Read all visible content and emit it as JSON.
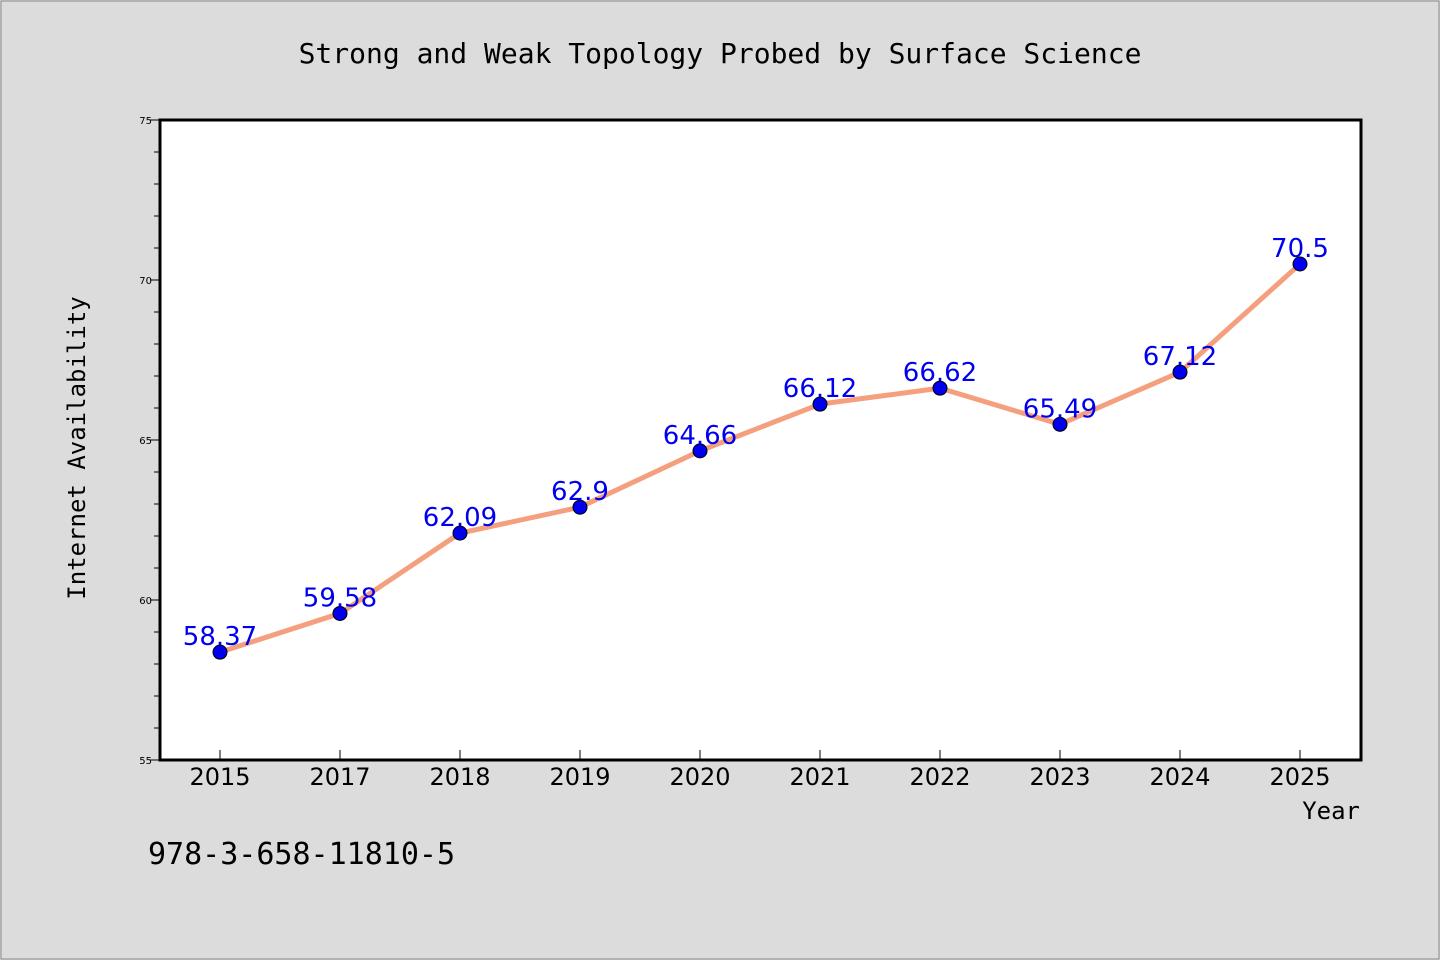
{
  "chart_data": {
    "type": "line",
    "title": "Strong and Weak Topology Probed by Surface Science",
    "xlabel": "Year",
    "ylabel": "Internet Availability",
    "categories": [
      "2015",
      "2017",
      "2018",
      "2019",
      "2020",
      "2021",
      "2022",
      "2023",
      "2024",
      "2025"
    ],
    "series": [
      {
        "values": [
          58.37,
          59.58,
          62.09,
          62.9,
          64.66,
          66.12,
          66.62,
          65.49,
          67.12,
          70.5
        ],
        "labels": [
          "58.37",
          "59.58",
          "62.09",
          "62.9",
          "64.66",
          "66.12",
          "66.62",
          "65.49",
          "67.12",
          "70.5"
        ]
      }
    ],
    "ylim": [
      55,
      75
    ],
    "yticks": [
      "55",
      "60",
      "65",
      "70",
      "75"
    ],
    "grid": false,
    "legend": "none",
    "colors": {
      "line": "#f4a07f",
      "marker": "#0000ee",
      "data_label": "#0000ee",
      "background": "#dcdcdc",
      "plot_background": "#ffffff"
    }
  },
  "annotation": {
    "isbn": "978-3-658-11810-5"
  }
}
